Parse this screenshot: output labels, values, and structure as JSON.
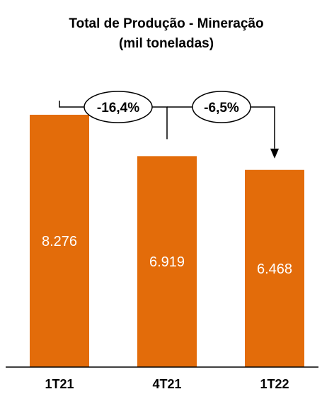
{
  "chart_data": {
    "type": "bar",
    "title": "Total de Produção - Mineração",
    "subtitle": "(mil toneladas)",
    "categories": [
      "1T21",
      "4T21",
      "1T22"
    ],
    "values": [
      8276,
      6919,
      6468
    ],
    "value_labels": [
      "8.276",
      "6.919",
      "6.468"
    ],
    "ylim": [
      0,
      9600
    ],
    "grid": false,
    "bar_color": "#E36C0A",
    "annotations": [
      {
        "text": "-16,4%",
        "from": "1T21",
        "to": "4T21"
      },
      {
        "text": "-6,5%",
        "from": "4T21",
        "to": "1T22"
      }
    ]
  }
}
